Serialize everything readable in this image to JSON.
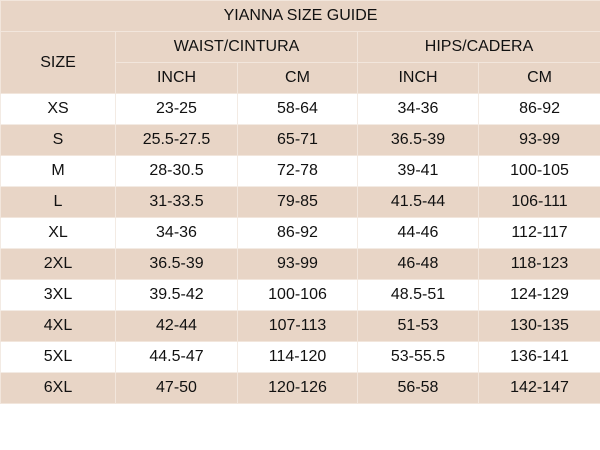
{
  "title": "YIANNA SIZE GUIDE",
  "headers": {
    "size": "SIZE",
    "waist": "WAIST/CINTURA",
    "hips": "HIPS/CADERA",
    "units": [
      "INCH",
      "CM",
      "INCH",
      "CM"
    ]
  },
  "rows": [
    {
      "size": "XS",
      "waist_in": "23-25",
      "waist_cm": "58-64",
      "hips_in": "34-36",
      "hips_cm": "86-92"
    },
    {
      "size": "S",
      "waist_in": "25.5-27.5",
      "waist_cm": "65-71",
      "hips_in": "36.5-39",
      "hips_cm": "93-99"
    },
    {
      "size": "M",
      "waist_in": "28-30.5",
      "waist_cm": "72-78",
      "hips_in": "39-41",
      "hips_cm": "100-105"
    },
    {
      "size": "L",
      "waist_in": "31-33.5",
      "waist_cm": "79-85",
      "hips_in": "41.5-44",
      "hips_cm": "106-111"
    },
    {
      "size": "XL",
      "waist_in": "34-36",
      "waist_cm": "86-92",
      "hips_in": "44-46",
      "hips_cm": "112-117"
    },
    {
      "size": "2XL",
      "waist_in": "36.5-39",
      "waist_cm": "93-99",
      "hips_in": "46-48",
      "hips_cm": "118-123"
    },
    {
      "size": "3XL",
      "waist_in": "39.5-42",
      "waist_cm": "100-106",
      "hips_in": "48.5-51",
      "hips_cm": "124-129"
    },
    {
      "size": "4XL",
      "waist_in": "42-44",
      "waist_cm": "107-113",
      "hips_in": "51-53",
      "hips_cm": "130-135"
    },
    {
      "size": "5XL",
      "waist_in": "44.5-47",
      "waist_cm": "114-120",
      "hips_in": "53-55.5",
      "hips_cm": "136-141"
    },
    {
      "size": "6XL",
      "waist_in": "47-50",
      "waist_cm": "120-126",
      "hips_in": "56-58",
      "hips_cm": "142-147"
    }
  ],
  "colors": {
    "header_bg": "#e8d5c6",
    "alt_row_bg": "#e8d5c6",
    "row_bg": "#ffffff"
  }
}
